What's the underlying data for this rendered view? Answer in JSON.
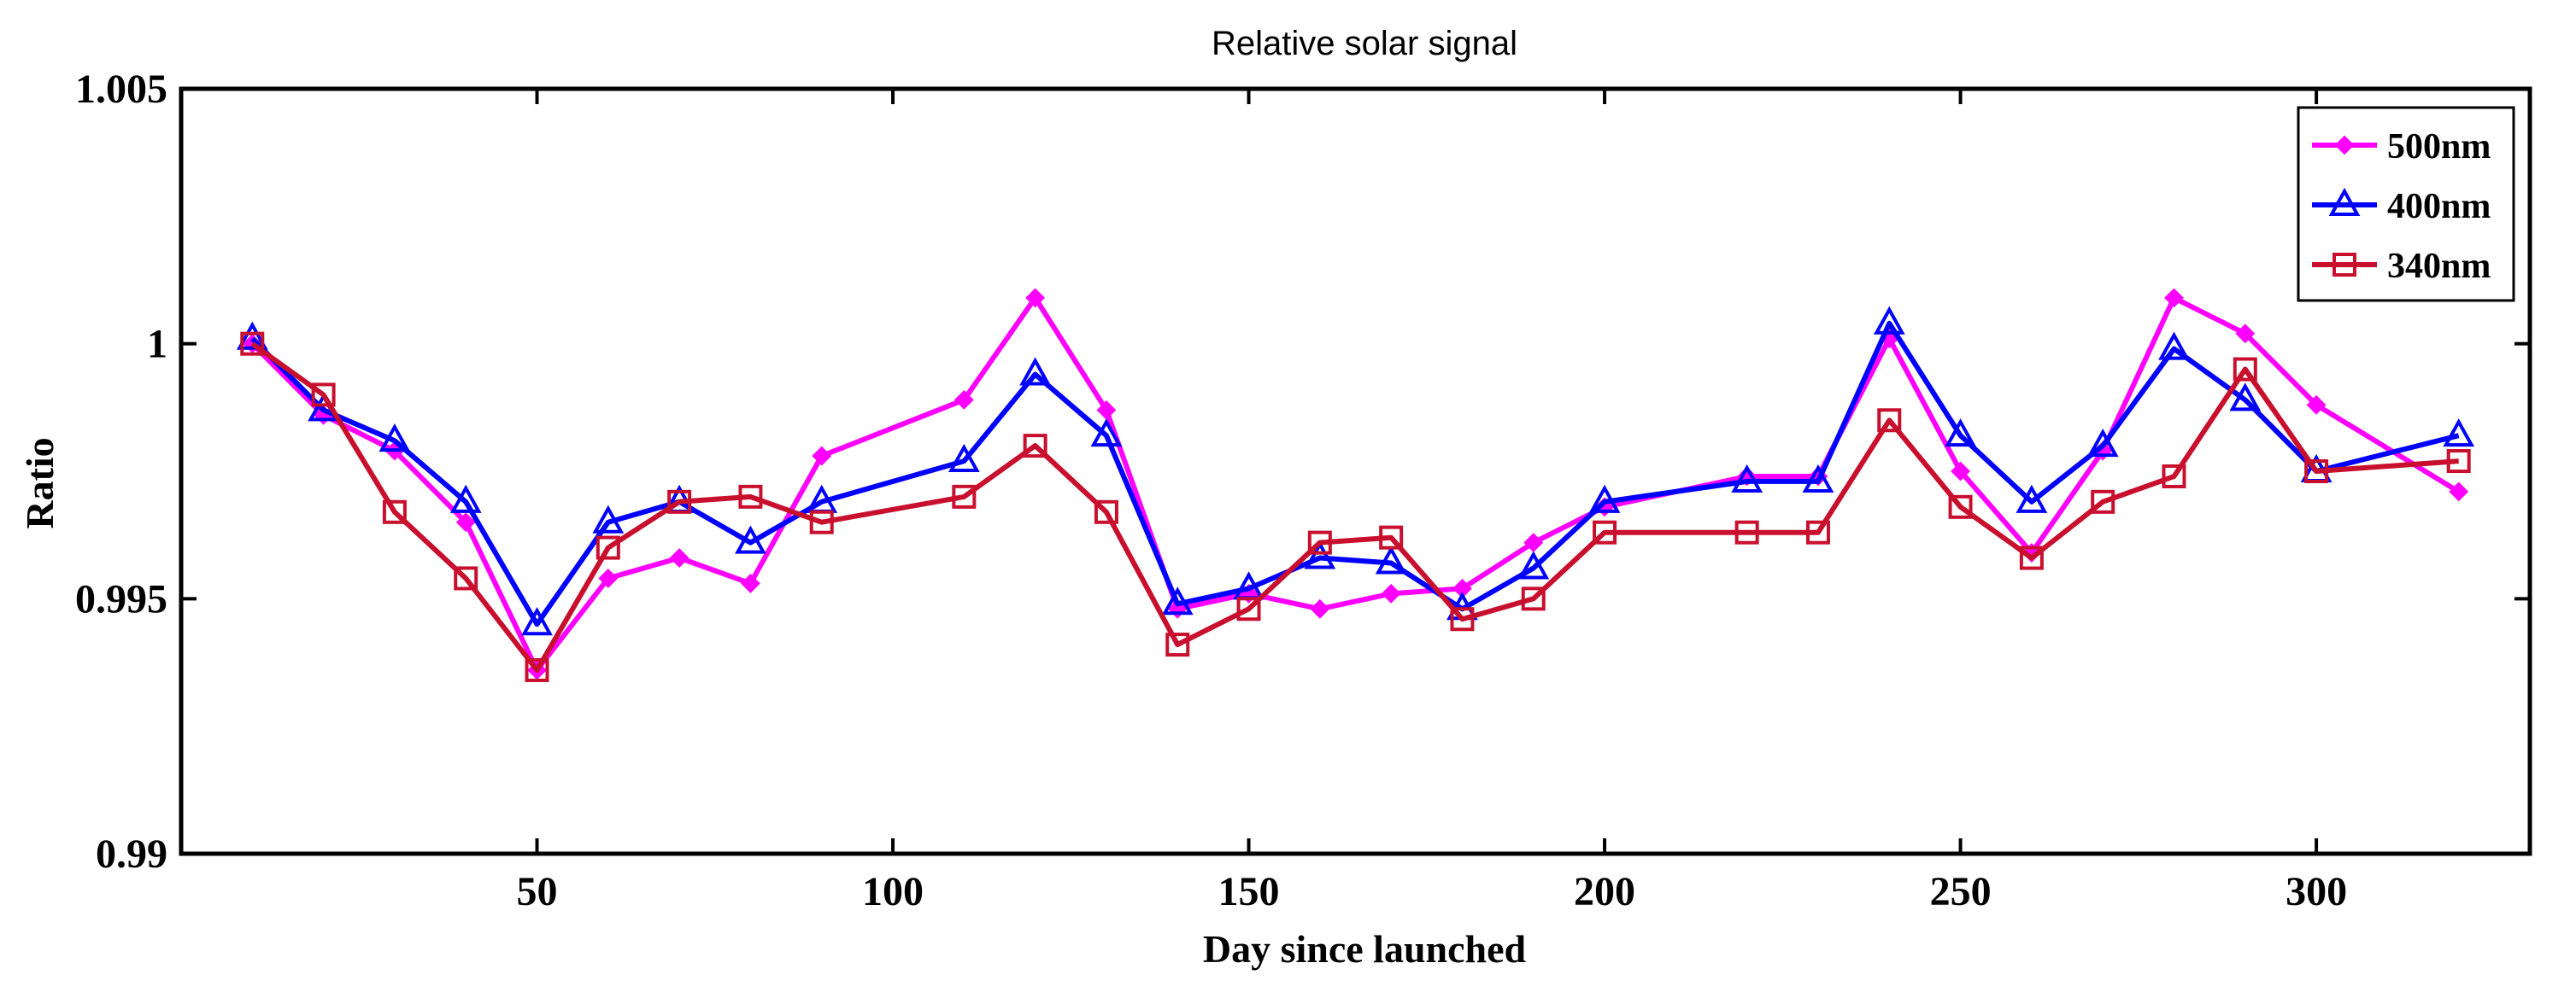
{
  "chart_data": {
    "type": "line",
    "title": "Relative solar signal",
    "xlabel": "Day since launched",
    "ylabel": "Ratio",
    "xlim": [
      0,
      330
    ],
    "ylim": [
      0.99,
      1.005
    ],
    "xticks": [
      50,
      100,
      150,
      200,
      250,
      300
    ],
    "xtick_labels": [
      "50",
      "100",
      "150",
      "200",
      "250",
      "300"
    ],
    "yticks": [
      0.99,
      0.995,
      1.0,
      1.005
    ],
    "ytick_labels": [
      "0.99",
      "0.995",
      "1",
      "1.005"
    ],
    "legend_position": "top-right",
    "series": [
      {
        "name": "500nm",
        "color": "#ff00ff",
        "marker": "diamond",
        "x": [
          10,
          20,
          30,
          40,
          50,
          60,
          70,
          80,
          90,
          110,
          120,
          130,
          140,
          150,
          160,
          170,
          180,
          190,
          200,
          220,
          230,
          240,
          250,
          260,
          270,
          280,
          290,
          300,
          320
        ],
        "values": [
          1.0,
          0.9986,
          0.9979,
          0.9965,
          0.9936,
          0.9954,
          0.9958,
          0.9953,
          0.9978,
          0.9989,
          1.0009,
          0.9987,
          0.9948,
          0.9951,
          0.9948,
          0.9951,
          0.9952,
          0.9961,
          0.9968,
          0.9974,
          0.9974,
          1.0001,
          0.9975,
          0.9959,
          0.9979,
          1.0009,
          1.0002,
          0.9988,
          0.9971
        ]
      },
      {
        "name": "400nm",
        "color": "#0000ff",
        "marker": "triangle",
        "x": [
          10,
          20,
          30,
          40,
          50,
          60,
          70,
          80,
          90,
          110,
          120,
          130,
          140,
          150,
          160,
          170,
          180,
          190,
          200,
          220,
          230,
          240,
          250,
          260,
          270,
          280,
          290,
          300,
          320
        ],
        "values": [
          1.0001,
          0.9987,
          0.9981,
          0.9969,
          0.9945,
          0.9965,
          0.9969,
          0.9961,
          0.9969,
          0.9977,
          0.9994,
          0.9982,
          0.9949,
          0.9952,
          0.9958,
          0.9957,
          0.9948,
          0.9956,
          0.9969,
          0.9973,
          0.9973,
          1.0004,
          0.9982,
          0.9969,
          0.998,
          0.9999,
          0.9989,
          0.9975,
          0.9982
        ]
      },
      {
        "name": "340nm",
        "color": "#c8102e",
        "marker": "square",
        "x": [
          10,
          20,
          30,
          40,
          50,
          60,
          70,
          80,
          90,
          110,
          120,
          130,
          140,
          150,
          160,
          170,
          180,
          190,
          200,
          220,
          230,
          240,
          250,
          260,
          270,
          280,
          290,
          300,
          320
        ],
        "values": [
          1.0,
          0.999,
          0.9967,
          0.9954,
          0.9936,
          0.996,
          0.9969,
          0.997,
          0.9965,
          0.997,
          0.998,
          0.9967,
          0.9941,
          0.9948,
          0.9961,
          0.9962,
          0.9946,
          0.995,
          0.9963,
          0.9963,
          0.9963,
          0.9985,
          0.9968,
          0.9958,
          0.9969,
          0.9974,
          0.9995,
          0.9975,
          0.9977
        ]
      }
    ]
  }
}
